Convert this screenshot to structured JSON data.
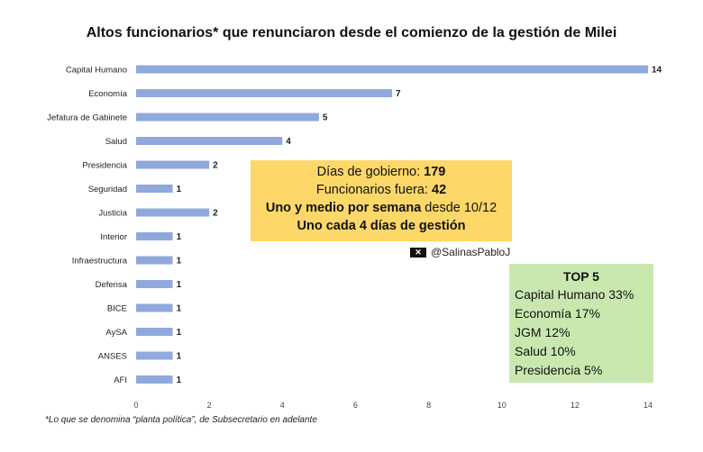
{
  "chart_data": {
    "type": "bar",
    "orientation": "horizontal",
    "title": "Altos funcionarios* que renunciaron desde el comienzo de la gestión de Milei",
    "categories": [
      "Capital Humano",
      "Economía",
      "Jefatura de Gabinete",
      "Salud",
      "Presidencia",
      "Seguridad",
      "Justicia",
      "Interior",
      "Infraestructura",
      "Defensa",
      "BICE",
      "AySA",
      "ANSES",
      "AFI"
    ],
    "values": [
      14,
      7,
      5,
      4,
      2,
      1,
      2,
      1,
      1,
      1,
      1,
      1,
      1,
      1
    ],
    "xlim": [
      0,
      14
    ],
    "xticks": [
      0,
      2,
      4,
      6,
      8,
      10,
      12,
      14
    ],
    "bar_color": "#8fa9dc",
    "grid": false,
    "data_labels": true
  },
  "info_box": {
    "line1_a": "Días de gobierno: ",
    "line1_b": "179",
    "line2_a": "Funcionarios fuera: ",
    "line2_b": "42",
    "line3_a": "Uno y medio por semana",
    "line3_b": " desde 10/12",
    "line4": "Uno cada 4 días de gestión",
    "color": "#fdd868"
  },
  "handle": {
    "logo": "x-logo-icon",
    "text": "@SalinasPabloJ"
  },
  "top5": {
    "title": "TOP 5",
    "items": [
      "Capital Humano 33%",
      "Economía 17%",
      "JGM 12%",
      "Salud 10%",
      "Presidencia 5%"
    ],
    "color": "#c9e8b0"
  },
  "footnote": {
    "a": "*Lo que se denomina ",
    "b": "“planta política”",
    "c": ", de Subsecretario en adelante"
  }
}
